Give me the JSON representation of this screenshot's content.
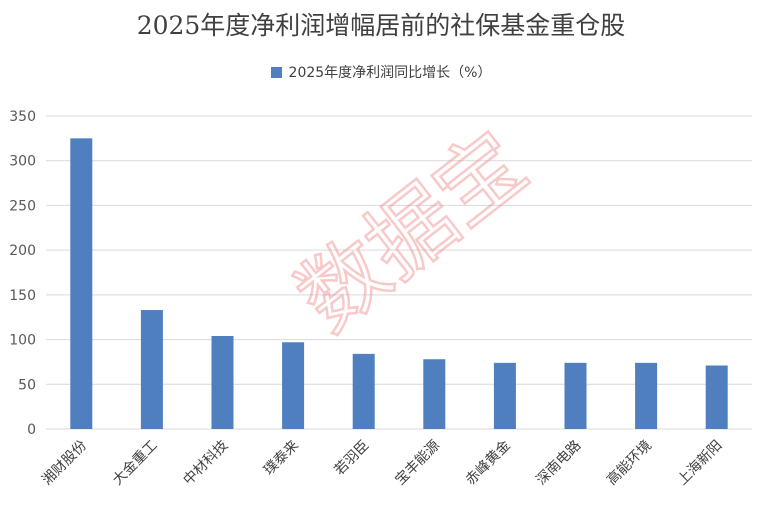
{
  "chart_data": {
    "type": "bar",
    "title": "2025年度净利润增幅居前的社保基金重仓股",
    "categories": [
      "湘财股份",
      "大金重工",
      "中材科技",
      "璞泰来",
      "若羽臣",
      "宝丰能源",
      "赤峰黄金",
      "深南电路",
      "高能环境",
      "上海新阳"
    ],
    "series": [
      {
        "name": "2025年度净利润同比增长（%）",
        "values": [
          325,
          133,
          104,
          97,
          84,
          78,
          74,
          74,
          74,
          71
        ]
      }
    ],
    "y_ticks": [
      0,
      50,
      100,
      150,
      200,
      250,
      300,
      350
    ],
    "ylim": [
      0,
      350
    ],
    "grid": true,
    "legend_position": "top",
    "bar_color": "#4f7fbf"
  },
  "watermark": "数据宝"
}
